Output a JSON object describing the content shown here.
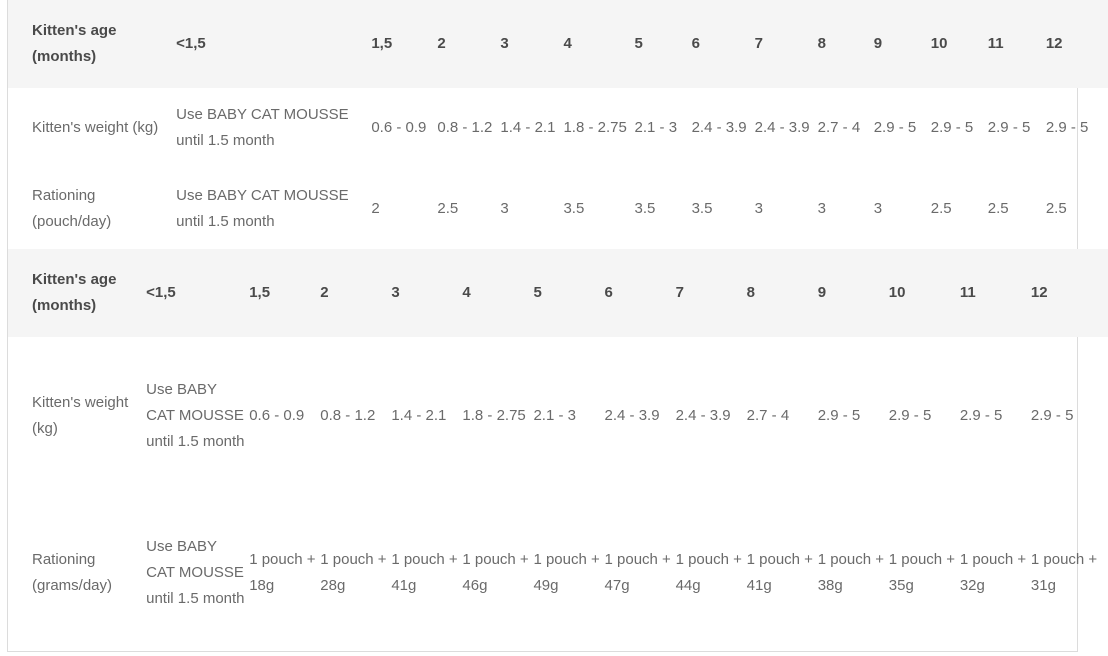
{
  "tables": [
    {
      "header": {
        "label": "Kitten's age (months)",
        "cells": [
          "<1,5",
          "1,5",
          "2",
          "3",
          "4",
          "5",
          "6",
          "7",
          "8",
          "9",
          "10",
          "11",
          "12"
        ]
      },
      "rows": [
        {
          "label": "Kitten's weight (kg)",
          "cells": [
            "Use BABY CAT MOUSSE until 1.5 month",
            "0.6 - 0.9",
            "0.8 - 1.2",
            "1.4 - 2.1",
            "1.8 - 2.75",
            "2.1 - 3",
            "2.4 - 3.9",
            "2.4 - 3.9",
            "2.7 - 4",
            "2.9 - 5",
            "2.9 - 5",
            "2.9 - 5",
            "2.9 - 5"
          ]
        },
        {
          "label": "Rationing (pouch/day)",
          "cells": [
            "Use BABY CAT MOUSSE until 1.5 month",
            "2",
            "2.5",
            "3",
            "3.5",
            "3.5",
            "3.5",
            "3",
            "3",
            "3",
            "2.5",
            "2.5",
            "2.5"
          ]
        }
      ]
    },
    {
      "header": {
        "label": "Kitten's age (months)",
        "cells": [
          "<1,5",
          "1,5",
          "2",
          "3",
          "4",
          "5",
          "6",
          "7",
          "8",
          "9",
          "10",
          "11",
          "12"
        ]
      },
      "rows": [
        {
          "label": "Kitten's weight (kg)",
          "cells": [
            "Use BABY CAT MOUSSE until 1.5 month",
            "0.6 - 0.9",
            "0.8 - 1.2",
            "1.4 - 2.1",
            "1.8 - 2.75",
            "2.1 - 3",
            "2.4 - 3.9",
            "2.4 - 3.9",
            "2.7 - 4",
            "2.9 - 5",
            "2.9 - 5",
            "2.9 - 5",
            "2.9 - 5"
          ]
        },
        {
          "label": "Rationing (grams/day)",
          "cells": [
            "Use BABY CAT MOUSSE until 1.5 month",
            "1 pouch + 18g",
            "1 pouch + 28g",
            "1 pouch + 41g",
            "1 pouch + 46g",
            "1 pouch + 49g",
            "1 pouch + 47g",
            "1 pouch + 44g",
            "1 pouch + 41g",
            "1 pouch + 38g",
            "1 pouch + 35g",
            "1 pouch + 32g",
            "1 pouch + 31g"
          ]
        }
      ]
    }
  ]
}
